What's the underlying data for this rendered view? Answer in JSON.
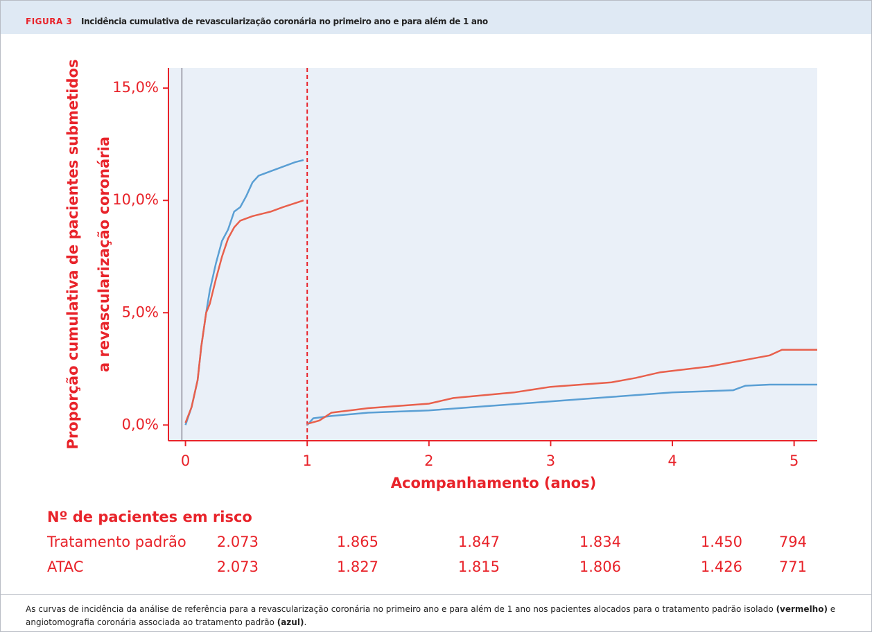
{
  "header": {
    "label": "FIGURA 3",
    "title": "Incidência cumulativa de revascularização coronária no primeiro ano e para além de 1 ano"
  },
  "chart_data": {
    "type": "line",
    "ylabel": [
      "Proporção cumulativa de pacientes submetidos",
      "a revascularização coronária"
    ],
    "xlabel": "Acompanhamento (anos)",
    "xlim": [
      -0.14,
      5.19
    ],
    "ylim": [
      -0.7,
      15.9
    ],
    "xticks": [
      0,
      1,
      2,
      3,
      4,
      5
    ],
    "yticks": [
      {
        "value": 0,
        "label": "0,0%"
      },
      {
        "value": 5,
        "label": "5,0%"
      },
      {
        "value": 10,
        "label": "10,0%"
      },
      {
        "value": 15,
        "label": "15,0%"
      }
    ],
    "background": "#eaf0f8",
    "axis_color": "#e8232a",
    "vlines": [
      {
        "x": -0.03,
        "color": "#a8a8b4",
        "dashed": false
      },
      {
        "x": 1,
        "color": "#e8232a",
        "dashed": true
      }
    ],
    "series": [
      {
        "color": "#5a9fd4",
        "x": [
          0,
          0.05,
          0.1,
          0.13,
          0.17,
          0.2,
          0.25,
          0.3,
          0.35,
          0.4,
          0.45,
          0.5,
          0.55,
          0.6,
          0.7,
          0.8,
          0.9,
          0.97,
          null,
          1.0,
          1.05,
          1.2,
          1.5,
          2.0,
          2.5,
          3.0,
          3.5,
          4.0,
          4.5,
          4.6,
          4.8,
          5.19
        ],
        "values": [
          0,
          0.8,
          2,
          3.5,
          5,
          6,
          7.2,
          8.2,
          8.7,
          9.5,
          9.7,
          10.2,
          10.8,
          11.1,
          11.3,
          11.5,
          11.7,
          11.8,
          null,
          0.0,
          0.3,
          0.4,
          0.55,
          0.65,
          0.85,
          1.05,
          1.25,
          1.45,
          1.55,
          1.75,
          1.8,
          1.8
        ]
      },
      {
        "color": "#e8604c",
        "x": [
          0,
          0.05,
          0.1,
          0.13,
          0.17,
          0.2,
          0.25,
          0.3,
          0.35,
          0.4,
          0.45,
          0.55,
          0.7,
          0.8,
          0.97,
          null,
          1.0,
          1.1,
          1.2,
          1.5,
          2.0,
          2.2,
          2.7,
          3.0,
          3.5,
          3.7,
          3.9,
          4.3,
          4.6,
          4.8,
          4.9,
          5.19
        ],
        "values": [
          0.1,
          0.8,
          2,
          3.5,
          5,
          5.4,
          6.5,
          7.5,
          8.3,
          8.8,
          9.1,
          9.3,
          9.5,
          9.7,
          10,
          null,
          0.05,
          0.2,
          0.55,
          0.75,
          0.95,
          1.2,
          1.45,
          1.7,
          1.9,
          2.1,
          2.35,
          2.6,
          2.9,
          3.1,
          3.35,
          3.35
        ]
      }
    ],
    "risk_table": {
      "title": "Nº de pacientes em risco",
      "rows": [
        {
          "label": "Tratamento padrão",
          "values": [
            "2.073",
            "1.865",
            "1.847",
            "1.834",
            "1.450",
            "794"
          ]
        },
        {
          "label": "ATAC",
          "values": [
            "2.073",
            "1.827",
            "1.815",
            "1.806",
            "1.426",
            "771"
          ]
        }
      ]
    }
  },
  "caption": [
    {
      "text": "As curvas de incidência da análise de referência para a revascularização coronária no primeiro ano e para além de 1 ano nos pacientes alocados para o tratamento padrão isolado ",
      "bold": false
    },
    {
      "text": "(vermelho)",
      "bold": true
    },
    {
      "text": " e angiotomografia coronária associada ao tratamento padrão ",
      "bold": false
    },
    {
      "text": "(azul)",
      "bold": true
    },
    {
      "text": ".",
      "bold": false
    }
  ]
}
